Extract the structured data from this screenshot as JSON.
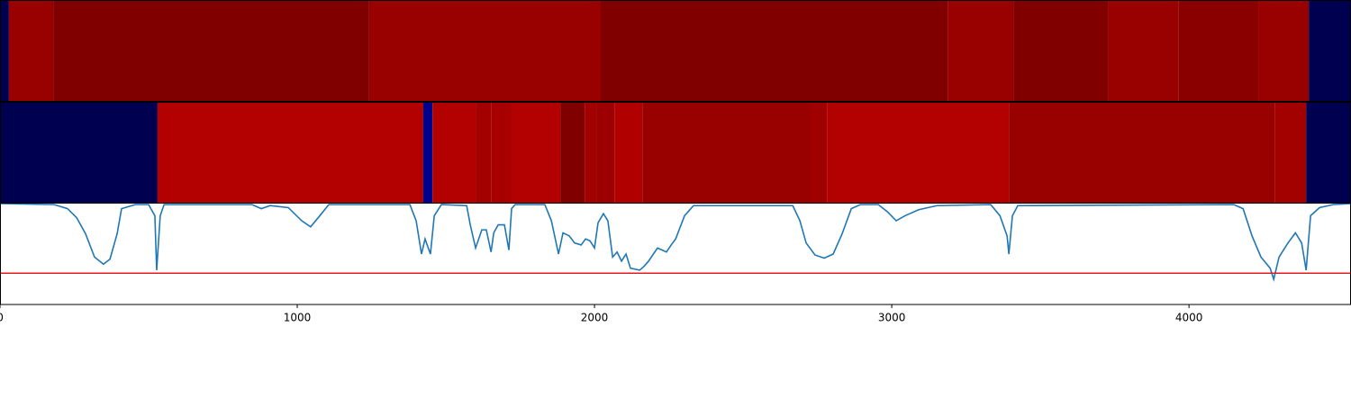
{
  "chart_data": {
    "type": "line",
    "xlim": [
      0,
      4545
    ],
    "ylim": [
      0,
      1
    ],
    "xticks": [
      0,
      1000,
      2000,
      3000,
      4000
    ],
    "strips": [
      {
        "segments": [
          {
            "start": 0,
            "end": 30,
            "color": "#000050"
          },
          {
            "start": 30,
            "end": 179,
            "color": "#990000"
          },
          {
            "start": 179,
            "end": 1242,
            "color": "#800000"
          },
          {
            "start": 1242,
            "end": 2021,
            "color": "#990000"
          },
          {
            "start": 2021,
            "end": 3188,
            "color": "#800000"
          },
          {
            "start": 3188,
            "end": 3409,
            "color": "#990000"
          },
          {
            "start": 3409,
            "end": 3727,
            "color": "#800000"
          },
          {
            "start": 3727,
            "end": 3964,
            "color": "#990000"
          },
          {
            "start": 3964,
            "end": 4233,
            "color": "#8a0000"
          },
          {
            "start": 4233,
            "end": 4403,
            "color": "#990000"
          },
          {
            "start": 4403,
            "end": 4545,
            "color": "#000050"
          }
        ]
      },
      {
        "segments": [
          {
            "start": 0,
            "end": 530,
            "color": "#000050"
          },
          {
            "start": 530,
            "end": 1424,
            "color": "#b30000"
          },
          {
            "start": 1424,
            "end": 1455,
            "color": "#00008f"
          },
          {
            "start": 1455,
            "end": 1600,
            "color": "#b30000"
          },
          {
            "start": 1600,
            "end": 1652,
            "color": "#a30000"
          },
          {
            "start": 1652,
            "end": 1718,
            "color": "#a80000"
          },
          {
            "start": 1718,
            "end": 1885,
            "color": "#b30000"
          },
          {
            "start": 1885,
            "end": 1967,
            "color": "#800000"
          },
          {
            "start": 1967,
            "end": 2006,
            "color": "#a30000"
          },
          {
            "start": 2006,
            "end": 2067,
            "color": "#9c0000"
          },
          {
            "start": 2067,
            "end": 2161,
            "color": "#b00000"
          },
          {
            "start": 2161,
            "end": 2727,
            "color": "#990000"
          },
          {
            "start": 2727,
            "end": 2782,
            "color": "#a00000"
          },
          {
            "start": 2782,
            "end": 3394,
            "color": "#b30000"
          },
          {
            "start": 3394,
            "end": 4288,
            "color": "#990000"
          },
          {
            "start": 4288,
            "end": 4394,
            "color": "#a30000"
          },
          {
            "start": 4394,
            "end": 4545,
            "color": "#000050"
          }
        ]
      }
    ],
    "x": [
      0,
      182,
      227,
      258,
      288,
      318,
      348,
      370,
      394,
      409,
      455,
      500,
      521,
      527,
      539,
      552,
      848,
      879,
      909,
      970,
      1015,
      1045,
      1076,
      1106,
      1379,
      1400,
      1418,
      1430,
      1448,
      1461,
      1485,
      1570,
      1582,
      1600,
      1621,
      1636,
      1652,
      1661,
      1676,
      1697,
      1712,
      1721,
      1733,
      1833,
      1855,
      1879,
      1894,
      1915,
      1933,
      1955,
      1970,
      1985,
      2000,
      2012,
      2030,
      2045,
      2061,
      2076,
      2091,
      2106,
      2121,
      2152,
      2167,
      2182,
      2212,
      2242,
      2258,
      2273,
      2303,
      2333,
      2667,
      2691,
      2712,
      2742,
      2773,
      2803,
      2833,
      2864,
      2894,
      2955,
      2985,
      3015,
      3045,
      3091,
      3152,
      3333,
      3364,
      3388,
      3394,
      3406,
      3424,
      4151,
      4182,
      4212,
      4242,
      4273,
      4285,
      4303,
      4333,
      4358,
      4379,
      4394,
      4409,
      4439,
      4485,
      4545
    ],
    "series": [
      {
        "color": "#1f77b4",
        "values": [
          1.0,
          0.99,
          0.95,
          0.86,
          0.7,
          0.47,
          0.4,
          0.45,
          0.7,
          0.95,
          0.99,
          0.99,
          0.88,
          0.34,
          0.88,
          0.99,
          0.99,
          0.95,
          0.98,
          0.96,
          0.83,
          0.77,
          0.88,
          0.99,
          0.99,
          0.83,
          0.5,
          0.65,
          0.5,
          0.88,
          0.99,
          0.98,
          0.79,
          0.56,
          0.74,
          0.74,
          0.52,
          0.71,
          0.79,
          0.79,
          0.54,
          0.95,
          0.99,
          0.99,
          0.83,
          0.5,
          0.71,
          0.68,
          0.61,
          0.59,
          0.65,
          0.63,
          0.56,
          0.81,
          0.9,
          0.83,
          0.47,
          0.52,
          0.43,
          0.5,
          0.36,
          0.34,
          0.38,
          0.43,
          0.56,
          0.52,
          0.59,
          0.65,
          0.88,
          0.98,
          0.98,
          0.83,
          0.61,
          0.49,
          0.46,
          0.5,
          0.7,
          0.95,
          0.99,
          0.99,
          0.92,
          0.83,
          0.88,
          0.94,
          0.98,
          0.99,
          0.88,
          0.68,
          0.5,
          0.88,
          0.98,
          0.99,
          0.95,
          0.68,
          0.47,
          0.36,
          0.25,
          0.47,
          0.61,
          0.71,
          0.61,
          0.34,
          0.88,
          0.96,
          0.99,
          1.0
        ]
      }
    ],
    "threshold": {
      "value": 0.31,
      "color": "#e41a1c"
    }
  }
}
